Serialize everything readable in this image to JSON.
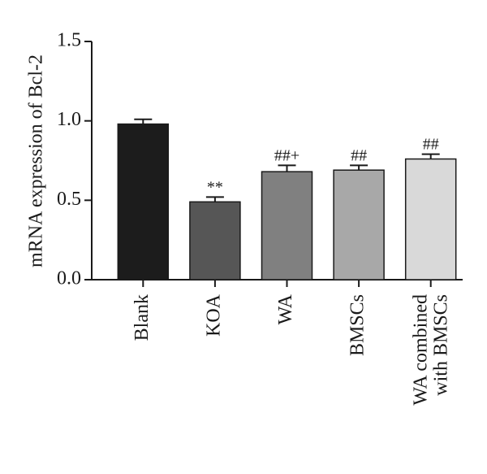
{
  "chart_data": {
    "type": "bar",
    "y_label": "mRNA expression of Bcl-2",
    "categories": [
      "Blank",
      "KOA",
      "WA",
      "BMSCs",
      "WA combined with BMSCs"
    ],
    "values": [
      0.98,
      0.49,
      0.68,
      0.69,
      0.76
    ],
    "errors": [
      0.03,
      0.03,
      0.04,
      0.03,
      0.03
    ],
    "colors": [
      "#1c1c1c",
      "#565656",
      "#808080",
      "#a8a8a8",
      "#d9d9d9"
    ],
    "annotations": [
      null,
      "**",
      "##+",
      "##",
      "##"
    ],
    "ylim": [
      0,
      1.5
    ],
    "yticks": [
      {
        "value": 0,
        "label": "0.0"
      },
      {
        "value": 0.5,
        "label": "0.5"
      },
      {
        "value": 1,
        "label": "1.0"
      },
      {
        "value": 1.5,
        "label": "1.5"
      }
    ]
  }
}
